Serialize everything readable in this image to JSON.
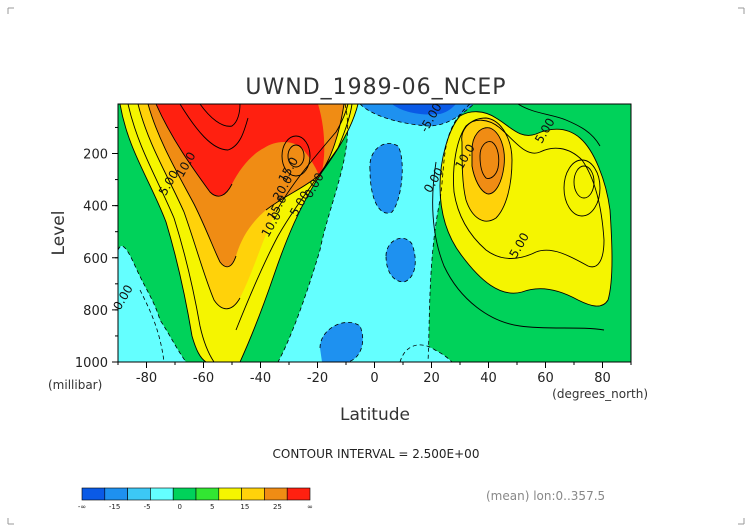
{
  "chart_data": {
    "type": "contour",
    "title": "UWND_1989-06_NCEP",
    "xlabel": "Latitude",
    "ylabel": "Level",
    "x_unit": "(degrees_north)",
    "y_unit": "(millibar)",
    "xlim": [
      -90,
      90
    ],
    "ylim": [
      1000,
      10
    ],
    "x_ticks": [
      -80,
      -60,
      -40,
      -20,
      0,
      20,
      40,
      60,
      80
    ],
    "y_ticks": [
      200,
      400,
      600,
      800,
      1000
    ],
    "grid": false,
    "contour_interval_text": "CONTOUR INTERVAL = 2.500E+00",
    "subtitle_right": "(mean) lon:0..357.5",
    "contour_labels": [
      {
        "text": "5.00",
        "lat": -71,
        "level": 320
      },
      {
        "text": "10.0",
        "lat": -65,
        "level": 250
      },
      {
        "text": "0.00",
        "lat": -87,
        "level": 760
      },
      {
        "text": "15.0",
        "lat": -29,
        "level": 270
      },
      {
        "text": "20.0",
        "lat": -31,
        "level": 340
      },
      {
        "text": "15.0",
        "lat": -33,
        "level": 415
      },
      {
        "text": "10.0",
        "lat": -35,
        "level": 480
      },
      {
        "text": "5.00",
        "lat": -25,
        "level": 400
      },
      {
        "text": "0.00",
        "lat": -20,
        "level": 330
      },
      {
        "text": "-5.00",
        "lat": 21,
        "level": 70
      },
      {
        "text": "0.00",
        "lat": 22,
        "level": 310
      },
      {
        "text": "10.0",
        "lat": 33,
        "level": 220
      },
      {
        "text": "5.00",
        "lat": 61,
        "level": 120
      },
      {
        "text": "5.00",
        "lat": 52,
        "level": 560
      }
    ],
    "colorbar": {
      "colors": [
        "#0a5ae6",
        "#1e91f0",
        "#3cc8f5",
        "#64ffff",
        "#00d25a",
        "#32e632",
        "#f5f500",
        "#ffd20a",
        "#f08c14",
        "#ff2010"
      ],
      "labels": [
        "-∞",
        "-15",
        "-5",
        "0",
        "5",
        "15",
        "25",
        "∞"
      ]
    }
  }
}
